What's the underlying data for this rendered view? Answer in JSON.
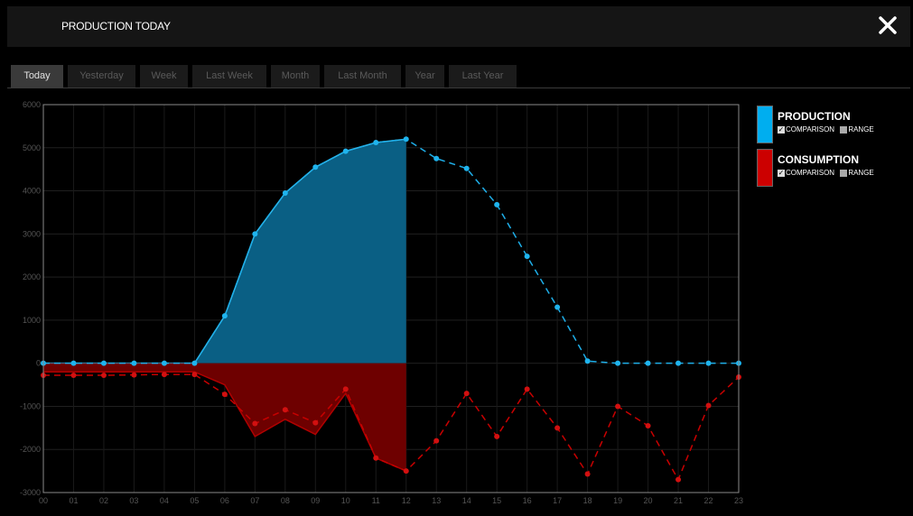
{
  "header": {
    "title": "PRODUCTION TODAY",
    "close_icon": "close-icon"
  },
  "tabs": [
    {
      "label": "Today",
      "active": true
    },
    {
      "label": "Yesterday",
      "active": false
    },
    {
      "label": "Week",
      "active": false
    },
    {
      "label": "Last Week",
      "active": false
    },
    {
      "label": "Month",
      "active": false
    },
    {
      "label": "Last Month",
      "active": false
    },
    {
      "label": "Year",
      "active": false
    },
    {
      "label": "Last Year",
      "active": false
    }
  ],
  "legend": [
    {
      "name": "PRODUCTION",
      "color": "#00aeef",
      "comparison_label": "COMPARISON",
      "comparison_checked": true,
      "range_label": "RANGE",
      "range_checked": false
    },
    {
      "name": "CONSUMPTION",
      "color": "#cc0000",
      "comparison_label": "COMPARISON",
      "comparison_checked": true,
      "range_label": "RANGE",
      "range_checked": false
    }
  ],
  "chart_data": {
    "type": "area",
    "title": "",
    "xlabel": "",
    "ylabel": "",
    "categories": [
      "00",
      "01",
      "02",
      "03",
      "04",
      "05",
      "06",
      "07",
      "08",
      "09",
      "10",
      "11",
      "12",
      "13",
      "14",
      "15",
      "16",
      "17",
      "18",
      "19",
      "20",
      "21",
      "22",
      "23"
    ],
    "ylim": [
      -3000,
      6000
    ],
    "yticks": [
      6000,
      5000,
      4000,
      3000,
      2000,
      1000,
      0,
      -1000,
      -2000,
      -3000
    ],
    "grid": true,
    "legend_position": "right",
    "series": [
      {
        "name": "PRODUCTION",
        "color": "#00aeef",
        "kind": "area",
        "values": [
          0,
          0,
          0,
          0,
          0,
          0,
          1100,
          3000,
          3950,
          4550,
          4920,
          5120,
          5200,
          null,
          null,
          null,
          null,
          null,
          null,
          null,
          null,
          null,
          null,
          null
        ]
      },
      {
        "name": "CONSUMPTION",
        "color": "#cc0000",
        "kind": "area",
        "values": [
          -200,
          -200,
          -200,
          -200,
          -200,
          -200,
          -500,
          -1700,
          -1300,
          -1650,
          -700,
          -2200,
          -2500,
          null,
          null,
          null,
          null,
          null,
          null,
          null,
          null,
          null,
          null,
          null
        ]
      },
      {
        "name": "PRODUCTION",
        "color": "#00aeef",
        "kind": "comparison",
        "values": [
          0,
          0,
          0,
          0,
          0,
          0,
          1100,
          3000,
          3950,
          4550,
          4920,
          5120,
          5200,
          4750,
          4520,
          3680,
          2480,
          1300,
          50,
          0,
          0,
          0,
          0,
          0
        ]
      },
      {
        "name": "CONSUMPTION",
        "color": "#cc0000",
        "kind": "comparison",
        "values": [
          -280,
          -280,
          -280,
          -270,
          -260,
          -260,
          -720,
          -1400,
          -1080,
          -1380,
          -600,
          -2200,
          -2500,
          -1800,
          -700,
          -1700,
          -600,
          -1500,
          -2570,
          -1000,
          -1450,
          -2700,
          -980,
          -320
        ]
      }
    ]
  }
}
